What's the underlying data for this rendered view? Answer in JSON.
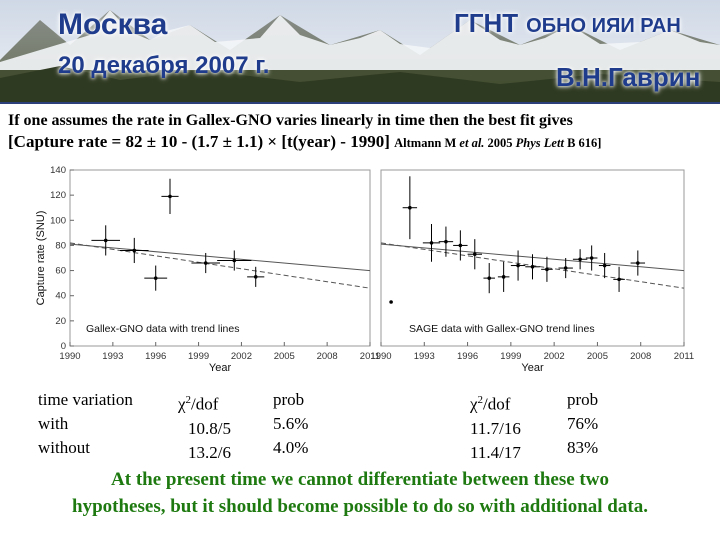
{
  "header": {
    "city": "Москва",
    "date": "20 декабря 2007 г.",
    "org_short": "ГГНТ",
    "org_long": "ОБНО ИЯИ РАН",
    "author": "В.Н.Гаврин"
  },
  "intro": {
    "line1": "If one assumes the rate in Gallex-GNO varies linearly in time then the best fit gives",
    "line2_open": "[",
    "formula": "Capture rate = 82 ± 10 - (1.7 ± 1.1) × [t(year) - 1990]",
    "citation_author": "Altmann M ",
    "citation_etal": "et al.",
    "citation_year": " 2005 ",
    "citation_journal": "Phys Lett",
    "citation_rest": " B 616]"
  },
  "chart_data": [
    {
      "type": "scatter",
      "title": "Gallex-GNO data with trend lines",
      "xlabel": "Year",
      "ylabel": "Capture rate (SNU)",
      "xlim": [
        1990,
        2011
      ],
      "ylim": [
        0,
        140
      ],
      "xticks": [
        "1990",
        "1993",
        "1996",
        "1999",
        "2002",
        "2005",
        "2008",
        "2011"
      ],
      "yticks": [
        "0",
        "20",
        "40",
        "60",
        "80",
        "100",
        "120",
        "140"
      ],
      "points": [
        {
          "x": 1992.5,
          "y": 84,
          "err": 12,
          "xerr": 1.0
        },
        {
          "x": 1994.5,
          "y": 76,
          "err": 10,
          "xerr": 1.0
        },
        {
          "x": 1996.0,
          "y": 54,
          "err": 10,
          "xerr": 0.8
        },
        {
          "x": 1997.0,
          "y": 119,
          "err": 14,
          "xerr": 0.6
        },
        {
          "x": 1999.5,
          "y": 66,
          "err": 8,
          "xerr": 1.0
        },
        {
          "x": 2001.5,
          "y": 68,
          "err": 8,
          "xerr": 1.2
        },
        {
          "x": 2003.0,
          "y": 55,
          "err": 8,
          "xerr": 0.6
        }
      ],
      "trend_lines": [
        {
          "style": "solid",
          "from": [
            1990,
            81
          ],
          "to": [
            2011,
            60
          ]
        },
        {
          "style": "dashed",
          "from": [
            1990,
            82
          ],
          "to": [
            2011,
            46
          ]
        }
      ],
      "grid": false
    },
    {
      "type": "scatter",
      "title": "SAGE data with Gallex-GNO trend lines",
      "xlabel": "Year",
      "ylabel": "",
      "xlim": [
        1990,
        2011
      ],
      "ylim": [
        0,
        140
      ],
      "xticks": [
        "1990",
        "1993",
        "1996",
        "1999",
        "2002",
        "2005",
        "2008",
        "2011"
      ],
      "yticks": [],
      "points": [
        {
          "x": 1990.7,
          "y": 35,
          "err": 0,
          "xerr": 0
        },
        {
          "x": 1992.0,
          "y": 110,
          "err": 25,
          "xerr": 0.5
        },
        {
          "x": 1993.5,
          "y": 82,
          "err": 15,
          "xerr": 0.6
        },
        {
          "x": 1994.5,
          "y": 83,
          "err": 12,
          "xerr": 0.5
        },
        {
          "x": 1995.5,
          "y": 80,
          "err": 12,
          "xerr": 0.5
        },
        {
          "x": 1996.5,
          "y": 73,
          "err": 12,
          "xerr": 0.5
        },
        {
          "x": 1997.5,
          "y": 54,
          "err": 12,
          "xerr": 0.4
        },
        {
          "x": 1998.5,
          "y": 55,
          "err": 12,
          "xerr": 0.4
        },
        {
          "x": 1999.5,
          "y": 64,
          "err": 12,
          "xerr": 0.5
        },
        {
          "x": 2000.5,
          "y": 63,
          "err": 10,
          "xerr": 0.5
        },
        {
          "x": 2001.5,
          "y": 61,
          "err": 10,
          "xerr": 0.4
        },
        {
          "x": 2002.8,
          "y": 62,
          "err": 8,
          "xerr": 0.5
        },
        {
          "x": 2003.8,
          "y": 69,
          "err": 8,
          "xerr": 0.5
        },
        {
          "x": 2004.6,
          "y": 70,
          "err": 10,
          "xerr": 0.4
        },
        {
          "x": 2005.5,
          "y": 64,
          "err": 10,
          "xerr": 0.4
        },
        {
          "x": 2006.5,
          "y": 53,
          "err": 10,
          "xerr": 0.4
        },
        {
          "x": 2007.8,
          "y": 66,
          "err": 10,
          "xerr": 0.5
        }
      ],
      "trend_lines": [
        {
          "style": "solid",
          "from": [
            1990,
            81
          ],
          "to": [
            2011,
            60
          ]
        },
        {
          "style": "dashed",
          "from": [
            1990,
            82
          ],
          "to": [
            2011,
            46
          ]
        }
      ],
      "grid": false
    }
  ],
  "table": {
    "gallex": {
      "rows": [
        {
          "label": "time variation",
          "chi": "",
          "prob": ""
        },
        {
          "label": "with",
          "chi": "10.8/5",
          "prob": "5.6%"
        },
        {
          "label": "without",
          "chi": "13.2/6",
          "prob": "4.0%"
        }
      ],
      "chi_header_prefix": "χ",
      "chi_header_sup": "2",
      "chi_header_suffix": "/dof",
      "prob_header": "prob"
    },
    "sage": {
      "chi_header_prefix": "χ",
      "chi_header_sup": "2",
      "chi_header_suffix": "/dof",
      "prob_header": "prob",
      "rows": [
        {
          "chi": "11.7/16",
          "prob": "76%"
        },
        {
          "chi": "11.4/17",
          "prob": "83%"
        }
      ]
    }
  },
  "footer": {
    "line1": "At the present time we cannot differentiate between these two",
    "line2": "hypotheses, but it should become possible to do so with additional data."
  },
  "colors": {
    "header_text": "#1f3c8c",
    "footer_text": "#1e7a10",
    "plot_line": "#000000"
  }
}
